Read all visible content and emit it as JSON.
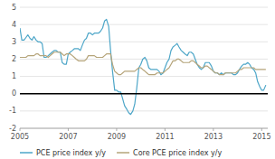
{
  "chart_data": {
    "type": "line",
    "x": [
      2005.0,
      2005.08,
      2005.17,
      2005.25,
      2005.33,
      2005.42,
      2005.5,
      2005.58,
      2005.67,
      2005.75,
      2005.83,
      2005.92,
      2006.0,
      2006.08,
      2006.17,
      2006.25,
      2006.33,
      2006.42,
      2006.5,
      2006.58,
      2006.67,
      2006.75,
      2006.83,
      2006.92,
      2007.0,
      2007.08,
      2007.17,
      2007.25,
      2007.33,
      2007.42,
      2007.5,
      2007.58,
      2007.67,
      2007.75,
      2007.83,
      2007.92,
      2008.0,
      2008.08,
      2008.17,
      2008.25,
      2008.33,
      2008.42,
      2008.5,
      2008.58,
      2008.67,
      2008.75,
      2008.83,
      2008.92,
      2009.0,
      2009.08,
      2009.17,
      2009.25,
      2009.33,
      2009.42,
      2009.5,
      2009.58,
      2009.67,
      2009.75,
      2009.83,
      2009.92,
      2010.0,
      2010.08,
      2010.17,
      2010.25,
      2010.33,
      2010.42,
      2010.5,
      2010.58,
      2010.67,
      2010.75,
      2010.83,
      2010.92,
      2011.0,
      2011.08,
      2011.17,
      2011.25,
      2011.33,
      2011.42,
      2011.5,
      2011.58,
      2011.67,
      2011.75,
      2011.83,
      2011.92,
      2012.0,
      2012.08,
      2012.17,
      2012.25,
      2012.33,
      2012.42,
      2012.5,
      2012.58,
      2012.67,
      2012.75,
      2012.83,
      2012.92,
      2013.0,
      2013.08,
      2013.17,
      2013.25,
      2013.33,
      2013.42,
      2013.5,
      2013.58,
      2013.67,
      2013.75,
      2013.83,
      2013.92,
      2014.0,
      2014.08,
      2014.17,
      2014.25,
      2014.33,
      2014.42,
      2014.5,
      2014.58,
      2014.67,
      2014.75,
      2014.83,
      2014.92,
      2015.0,
      2015.08,
      2015.17
    ],
    "series": [
      {
        "name": "PCE price index y/y",
        "color": "#4da6c8",
        "values": [
          3.8,
          3.1,
          3.1,
          3.25,
          3.4,
          3.2,
          3.1,
          3.3,
          3.1,
          3.0,
          3.0,
          2.9,
          2.1,
          2.1,
          2.2,
          2.3,
          2.4,
          2.5,
          2.5,
          2.4,
          2.4,
          1.8,
          1.7,
          1.7,
          2.3,
          2.4,
          2.5,
          2.6,
          2.6,
          2.6,
          2.5,
          2.8,
          3.1,
          3.2,
          3.5,
          3.5,
          3.4,
          3.5,
          3.5,
          3.5,
          3.6,
          3.8,
          4.2,
          4.3,
          3.9,
          2.5,
          1.3,
          0.2,
          0.2,
          0.1,
          0.1,
          -0.3,
          -0.7,
          -0.9,
          -1.1,
          -1.2,
          -1.0,
          -0.6,
          0.3,
          1.5,
          1.7,
          2.0,
          2.1,
          1.9,
          1.5,
          1.4,
          1.4,
          1.4,
          1.4,
          1.3,
          1.1,
          1.2,
          1.5,
          1.8,
          2.0,
          2.5,
          2.7,
          2.8,
          2.9,
          2.7,
          2.5,
          2.4,
          2.3,
          2.2,
          2.4,
          2.4,
          2.3,
          2.0,
          1.7,
          1.5,
          1.4,
          1.5,
          1.8,
          1.8,
          1.8,
          1.6,
          1.3,
          1.2,
          1.2,
          1.1,
          1.2,
          1.1,
          1.2,
          1.2,
          1.2,
          1.2,
          1.1,
          1.1,
          1.2,
          1.4,
          1.6,
          1.7,
          1.7,
          1.8,
          1.7,
          1.5,
          1.4,
          1.2,
          0.7,
          0.4,
          0.2,
          0.2,
          0.5
        ]
      },
      {
        "name": "Core PCE price index y/y",
        "color": "#b5a47a",
        "values": [
          2.1,
          2.1,
          2.1,
          2.1,
          2.2,
          2.2,
          2.2,
          2.2,
          2.3,
          2.3,
          2.2,
          2.2,
          2.2,
          2.2,
          2.1,
          2.2,
          2.3,
          2.4,
          2.4,
          2.4,
          2.4,
          2.3,
          2.2,
          2.3,
          2.3,
          2.3,
          2.2,
          2.1,
          2.0,
          1.9,
          1.9,
          1.9,
          1.9,
          2.0,
          2.2,
          2.2,
          2.2,
          2.2,
          2.1,
          2.1,
          2.1,
          2.1,
          2.2,
          2.3,
          2.3,
          2.3,
          1.7,
          1.3,
          1.2,
          1.1,
          1.1,
          1.2,
          1.3,
          1.3,
          1.3,
          1.3,
          1.3,
          1.3,
          1.4,
          1.5,
          1.5,
          1.4,
          1.3,
          1.2,
          1.1,
          1.1,
          1.1,
          1.1,
          1.2,
          1.2,
          1.2,
          1.2,
          1.3,
          1.4,
          1.5,
          1.7,
          1.9,
          1.9,
          2.0,
          2.0,
          1.9,
          1.8,
          1.8,
          1.8,
          1.8,
          1.9,
          1.9,
          1.8,
          1.7,
          1.6,
          1.5,
          1.5,
          1.6,
          1.6,
          1.5,
          1.4,
          1.3,
          1.2,
          1.2,
          1.1,
          1.1,
          1.1,
          1.2,
          1.2,
          1.2,
          1.2,
          1.2,
          1.2,
          1.3,
          1.4,
          1.4,
          1.5,
          1.5,
          1.5,
          1.5,
          1.5,
          1.5,
          1.4,
          1.4,
          1.4,
          1.4,
          1.4,
          1.4
        ]
      }
    ],
    "xlim": [
      2005.0,
      2015.25
    ],
    "xticks": [
      2005,
      2007,
      2009,
      2011,
      2013,
      2015
    ],
    "ylim": [
      -2,
      5
    ],
    "yticks": [
      -2,
      -1,
      0,
      1,
      2,
      3,
      4,
      5
    ],
    "grid": true,
    "legend": "bottom"
  }
}
